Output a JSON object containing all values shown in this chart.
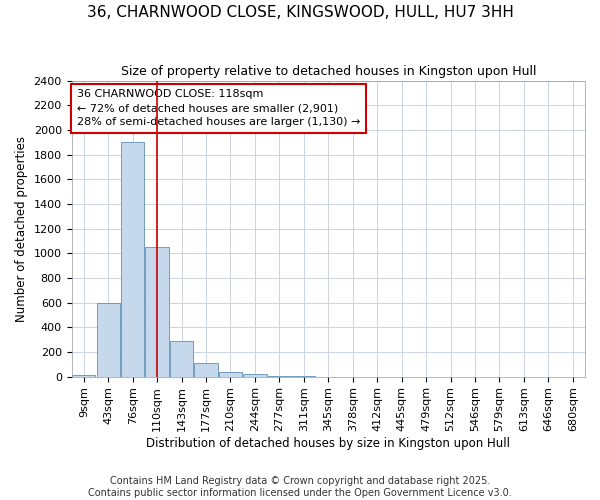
{
  "title": "36, CHARNWOOD CLOSE, KINGSWOOD, HULL, HU7 3HH",
  "subtitle": "Size of property relative to detached houses in Kingston upon Hull",
  "xlabel": "Distribution of detached houses by size in Kingston upon Hull",
  "ylabel": "Number of detached properties",
  "footer1": "Contains HM Land Registry data © Crown copyright and database right 2025.",
  "footer2": "Contains public sector information licensed under the Open Government Licence v3.0.",
  "annotation_line1": "36 CHARNWOOD CLOSE: 118sqm",
  "annotation_line2": "← 72% of detached houses are smaller (2,901)",
  "annotation_line3": "28% of semi-detached houses are larger (1,130) →",
  "bar_color": "#c5d8ec",
  "bar_edge_color": "#6090b8",
  "vline_color": "#cc0000",
  "grid_color": "#c8d4e4",
  "bg_color": "#ffffff",
  "categories": [
    "9sqm",
    "43sqm",
    "76sqm",
    "110sqm",
    "143sqm",
    "177sqm",
    "210sqm",
    "244sqm",
    "277sqm",
    "311sqm",
    "345sqm",
    "378sqm",
    "412sqm",
    "445sqm",
    "479sqm",
    "512sqm",
    "546sqm",
    "579sqm",
    "613sqm",
    "646sqm",
    "680sqm"
  ],
  "values": [
    10,
    600,
    1900,
    1050,
    290,
    110,
    40,
    20,
    5,
    2,
    0,
    0,
    0,
    0,
    0,
    0,
    0,
    0,
    0,
    0,
    0
  ],
  "vline_x": 3.0,
  "ylim": [
    0,
    2400
  ],
  "yticks": [
    0,
    200,
    400,
    600,
    800,
    1000,
    1200,
    1400,
    1600,
    1800,
    2000,
    2200,
    2400
  ],
  "title_fontsize": 11,
  "subtitle_fontsize": 9,
  "axis_label_fontsize": 8.5,
  "tick_fontsize": 8,
  "footer_fontsize": 7
}
